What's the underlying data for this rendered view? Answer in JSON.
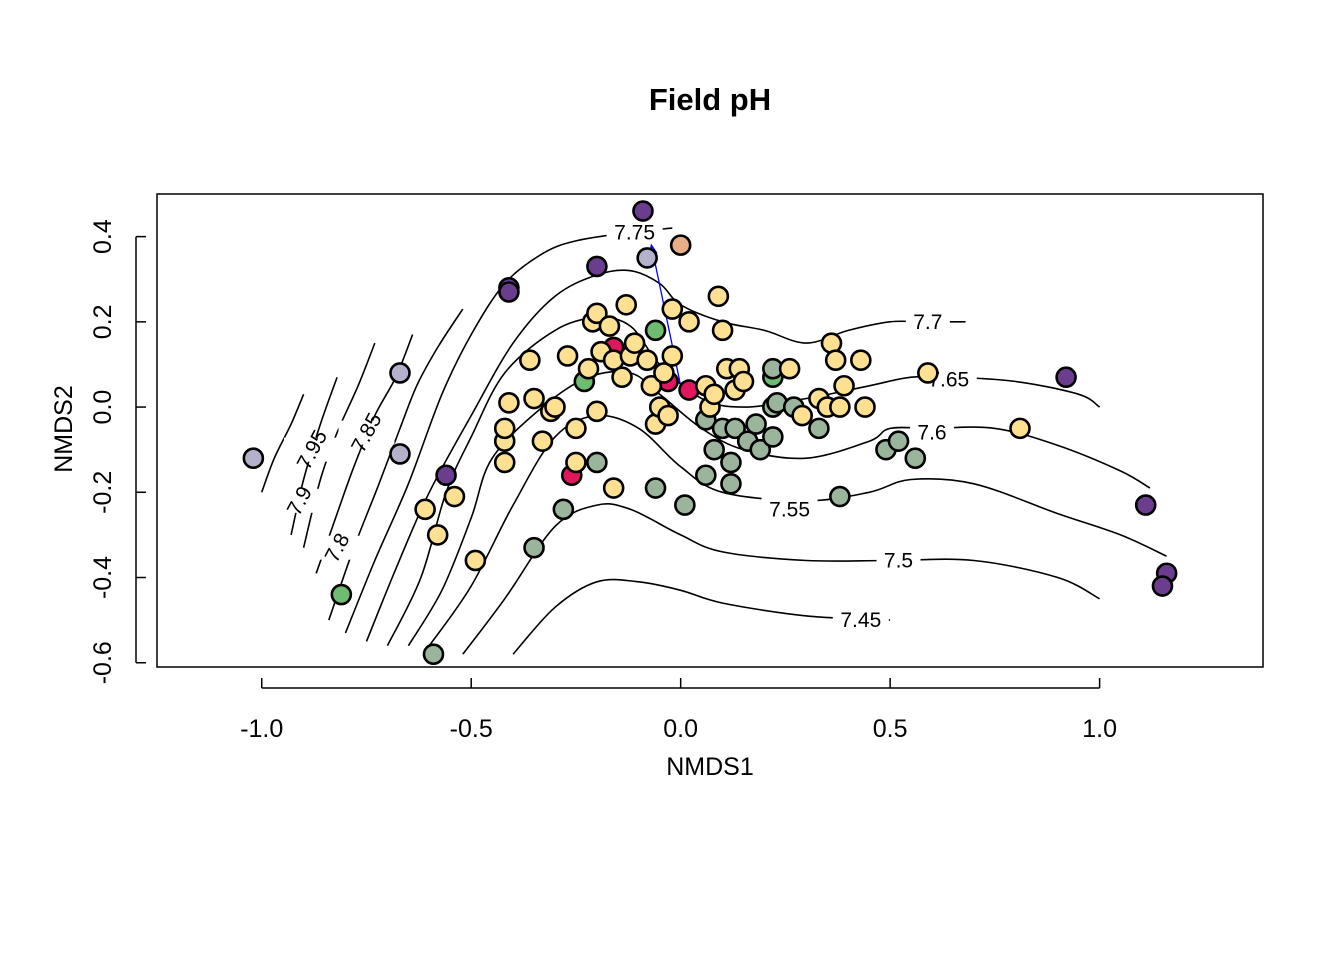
{
  "chart_data": {
    "type": "scatter",
    "title": "Field pH",
    "xlabel": "NMDS1",
    "ylabel": "NMDS2",
    "xlim": [
      -1.25,
      1.39
    ],
    "ylim": [
      -0.61,
      0.5
    ],
    "xticks": [
      -1.0,
      -0.5,
      0.0,
      0.5,
      1.0
    ],
    "xtick_labels": [
      "-1.0",
      "-0.5",
      "0.0",
      "0.5",
      "1.0"
    ],
    "yticks": [
      -0.6,
      -0.4,
      -0.2,
      0.0,
      0.2,
      0.4
    ],
    "ytick_labels": [
      "-0.6",
      "-0.4",
      "-0.2",
      "0.0",
      "0.2",
      "0.4"
    ],
    "grid": false,
    "legend": "none",
    "colors": {
      "yellow": "#fde092",
      "sage": "#9bb49c",
      "purple": "#6a3d8f",
      "lavender": "#b3b1cc",
      "green": "#6dbc6f",
      "magenta": "#e0165f",
      "peach": "#e8ae88",
      "contour": "#000000",
      "arrow": "#0000ff",
      "marker_edge": "#000000"
    },
    "vector": {
      "from": [
        0.0,
        0.05
      ],
      "to": [
        -0.07,
        0.38
      ]
    },
    "contours": [
      {
        "level": "7.45",
        "label_at": [
          0.43,
          -0.5
        ],
        "pts": [
          [
            -0.4,
            -0.58
          ],
          [
            -0.3,
            -0.47
          ],
          [
            -0.2,
            -0.41
          ],
          [
            -0.1,
            -0.41
          ],
          [
            0.0,
            -0.43
          ],
          [
            0.1,
            -0.46
          ],
          [
            0.3,
            -0.49
          ],
          [
            0.5,
            -0.5
          ]
        ]
      },
      {
        "level": "7.5",
        "label_at": [
          0.52,
          -0.36
        ],
        "pts": [
          [
            -0.52,
            -0.58
          ],
          [
            -0.42,
            -0.45
          ],
          [
            -0.3,
            -0.28
          ],
          [
            -0.2,
            -0.23
          ],
          [
            -0.12,
            -0.24
          ],
          [
            0.0,
            -0.3
          ],
          [
            0.1,
            -0.34
          ],
          [
            0.3,
            -0.36
          ],
          [
            0.5,
            -0.36
          ],
          [
            0.7,
            -0.36
          ],
          [
            0.9,
            -0.4
          ],
          [
            1.0,
            -0.45
          ]
        ]
      },
      {
        "level": "7.55",
        "label_at": [
          0.26,
          -0.24
        ],
        "pts": [
          [
            -0.6,
            -0.56
          ],
          [
            -0.5,
            -0.42
          ],
          [
            -0.4,
            -0.23
          ],
          [
            -0.3,
            -0.07
          ],
          [
            -0.2,
            -0.02
          ],
          [
            -0.1,
            -0.05
          ],
          [
            0.0,
            -0.14
          ],
          [
            0.1,
            -0.2
          ],
          [
            0.3,
            -0.22
          ],
          [
            0.45,
            -0.2
          ],
          [
            0.55,
            -0.17
          ],
          [
            0.7,
            -0.18
          ],
          [
            0.9,
            -0.25
          ],
          [
            1.05,
            -0.3
          ],
          [
            1.16,
            -0.35
          ]
        ]
      },
      {
        "level": "7.6",
        "label_at": [
          0.6,
          -0.06
        ],
        "pts": [
          [
            -0.65,
            -0.56
          ],
          [
            -0.57,
            -0.43
          ],
          [
            -0.5,
            -0.26
          ],
          [
            -0.45,
            -0.12
          ],
          [
            -0.33,
            0.0
          ],
          [
            -0.22,
            0.07
          ],
          [
            -0.12,
            0.08
          ],
          [
            -0.05,
            0.03
          ],
          [
            0.05,
            -0.05
          ],
          [
            0.15,
            -0.1
          ],
          [
            0.3,
            -0.12
          ],
          [
            0.45,
            -0.08
          ],
          [
            0.5,
            -0.05
          ],
          [
            0.6,
            -0.05
          ],
          [
            0.75,
            -0.05
          ],
          [
            0.9,
            -0.09
          ],
          [
            1.05,
            -0.15
          ],
          [
            1.12,
            -0.19
          ]
        ]
      },
      {
        "level": "7.65",
        "label_at": [
          0.64,
          0.065
        ],
        "pts": [
          [
            -0.7,
            -0.56
          ],
          [
            -0.62,
            -0.4
          ],
          [
            -0.56,
            -0.2
          ],
          [
            -0.5,
            -0.07
          ],
          [
            -0.42,
            0.08
          ],
          [
            -0.3,
            0.18
          ],
          [
            -0.2,
            0.21
          ],
          [
            -0.12,
            0.19
          ],
          [
            -0.05,
            0.1
          ],
          [
            0.05,
            0.02
          ],
          [
            0.15,
            0.0
          ],
          [
            0.3,
            0.02
          ],
          [
            0.45,
            0.05
          ],
          [
            0.55,
            0.07
          ],
          [
            0.65,
            0.07
          ],
          [
            0.8,
            0.06
          ],
          [
            0.95,
            0.03
          ],
          [
            1.0,
            0.0
          ]
        ]
      },
      {
        "level": "7.7",
        "label_at": [
          0.59,
          0.2
        ],
        "pts": [
          [
            -0.75,
            -0.55
          ],
          [
            -0.68,
            -0.38
          ],
          [
            -0.6,
            -0.2
          ],
          [
            -0.5,
            -0.02
          ],
          [
            -0.4,
            0.15
          ],
          [
            -0.3,
            0.26
          ],
          [
            -0.2,
            0.31
          ],
          [
            -0.12,
            0.32
          ],
          [
            -0.05,
            0.29
          ],
          [
            0.0,
            0.24
          ],
          [
            0.1,
            0.2
          ],
          [
            0.2,
            0.18
          ],
          [
            0.3,
            0.15
          ],
          [
            0.4,
            0.18
          ],
          [
            0.5,
            0.2
          ],
          [
            0.58,
            0.2
          ],
          [
            0.68,
            0.2
          ]
        ]
      },
      {
        "level": "7.75",
        "label_at": [
          -0.11,
          0.41
        ],
        "pts": [
          [
            -0.8,
            -0.53
          ],
          [
            -0.73,
            -0.36
          ],
          [
            -0.65,
            -0.18
          ],
          [
            -0.57,
            0.03
          ],
          [
            -0.5,
            0.17
          ],
          [
            -0.42,
            0.29
          ],
          [
            -0.33,
            0.36
          ],
          [
            -0.25,
            0.39
          ],
          [
            -0.12,
            0.41
          ],
          [
            -0.02,
            0.42
          ]
        ]
      },
      {
        "level": "7.8",
        "label_at": [
          -0.82,
          -0.33
        ],
        "pts": [
          [
            -0.84,
            -0.5
          ],
          [
            -0.78,
            -0.33
          ],
          [
            -0.72,
            -0.18
          ],
          [
            -0.67,
            -0.05
          ],
          [
            -0.63,
            0.05
          ],
          [
            -0.58,
            0.14
          ],
          [
            -0.52,
            0.23
          ]
        ]
      },
      {
        "level": "7.85",
        "label_at": [
          -0.75,
          -0.06
        ],
        "pts": [
          [
            -0.87,
            -0.39
          ],
          [
            -0.82,
            -0.25
          ],
          [
            -0.78,
            -0.14
          ],
          [
            -0.73,
            -0.02
          ],
          [
            -0.68,
            0.07
          ],
          [
            -0.64,
            0.17
          ]
        ]
      },
      {
        "level": "7.9",
        "label_at": [
          -0.91,
          -0.22
        ],
        "pts": [
          [
            -0.9,
            -0.33
          ],
          [
            -0.86,
            -0.17
          ],
          [
            -0.82,
            -0.06
          ],
          [
            -0.77,
            0.05
          ],
          [
            -0.73,
            0.15
          ]
        ]
      },
      {
        "level": "7.95",
        "label_at": [
          -0.88,
          -0.1
        ],
        "pts": [
          [
            -0.93,
            -0.3
          ],
          [
            -0.9,
            -0.17
          ],
          [
            -0.86,
            -0.04
          ],
          [
            -0.82,
            0.07
          ]
        ]
      },
      {
        "level": "",
        "label_at": null,
        "pts": [
          [
            -1.0,
            -0.2
          ],
          [
            -0.97,
            -0.12
          ],
          [
            -0.93,
            -0.04
          ],
          [
            -0.9,
            0.03
          ]
        ]
      }
    ],
    "points": [
      {
        "x": -1.02,
        "y": -0.12,
        "c": "lavender"
      },
      {
        "x": -0.67,
        "y": 0.08,
        "c": "lavender"
      },
      {
        "x": -0.67,
        "y": -0.11,
        "c": "lavender"
      },
      {
        "x": -0.08,
        "y": 0.35,
        "c": "lavender"
      },
      {
        "x": -0.09,
        "y": 0.46,
        "c": "purple"
      },
      {
        "x": -0.41,
        "y": 0.28,
        "c": "purple"
      },
      {
        "x": -0.41,
        "y": 0.27,
        "c": "purple"
      },
      {
        "x": -0.2,
        "y": 0.33,
        "c": "purple"
      },
      {
        "x": -0.56,
        "y": -0.16,
        "c": "purple"
      },
      {
        "x": 0.92,
        "y": 0.07,
        "c": "purple"
      },
      {
        "x": 1.11,
        "y": -0.23,
        "c": "purple"
      },
      {
        "x": 1.16,
        "y": -0.39,
        "c": "purple"
      },
      {
        "x": 1.15,
        "y": -0.42,
        "c": "purple"
      },
      {
        "x": -0.81,
        "y": -0.44,
        "c": "green"
      },
      {
        "x": -0.06,
        "y": 0.18,
        "c": "green"
      },
      {
        "x": -0.23,
        "y": 0.06,
        "c": "green"
      },
      {
        "x": 0.22,
        "y": 0.07,
        "c": "green"
      },
      {
        "x": 0.0,
        "y": 0.38,
        "c": "peach"
      },
      {
        "x": -0.16,
        "y": 0.14,
        "c": "magenta"
      },
      {
        "x": -0.03,
        "y": 0.06,
        "c": "magenta"
      },
      {
        "x": 0.02,
        "y": 0.04,
        "c": "magenta"
      },
      {
        "x": -0.26,
        "y": -0.16,
        "c": "magenta"
      },
      {
        "x": -0.59,
        "y": -0.58,
        "c": "sage"
      },
      {
        "x": -0.35,
        "y": -0.33,
        "c": "sage"
      },
      {
        "x": -0.28,
        "y": -0.24,
        "c": "sage"
      },
      {
        "x": -0.2,
        "y": -0.13,
        "c": "sage"
      },
      {
        "x": -0.06,
        "y": -0.19,
        "c": "sage"
      },
      {
        "x": 0.01,
        "y": -0.23,
        "c": "sage"
      },
      {
        "x": 0.06,
        "y": -0.16,
        "c": "sage"
      },
      {
        "x": 0.06,
        "y": -0.03,
        "c": "sage"
      },
      {
        "x": 0.08,
        "y": -0.1,
        "c": "sage"
      },
      {
        "x": 0.1,
        "y": -0.05,
        "c": "sage"
      },
      {
        "x": 0.12,
        "y": -0.18,
        "c": "sage"
      },
      {
        "x": 0.12,
        "y": -0.13,
        "c": "sage"
      },
      {
        "x": 0.13,
        "y": -0.05,
        "c": "sage"
      },
      {
        "x": 0.16,
        "y": -0.08,
        "c": "sage"
      },
      {
        "x": 0.18,
        "y": -0.04,
        "c": "sage"
      },
      {
        "x": 0.19,
        "y": -0.1,
        "c": "sage"
      },
      {
        "x": 0.22,
        "y": -0.07,
        "c": "sage"
      },
      {
        "x": 0.22,
        "y": 0.09,
        "c": "sage"
      },
      {
        "x": 0.22,
        "y": 0.0,
        "c": "sage"
      },
      {
        "x": 0.23,
        "y": 0.01,
        "c": "sage"
      },
      {
        "x": 0.27,
        "y": 0.0,
        "c": "sage"
      },
      {
        "x": 0.33,
        "y": -0.05,
        "c": "sage"
      },
      {
        "x": 0.38,
        "y": -0.21,
        "c": "sage"
      },
      {
        "x": 0.49,
        "y": -0.1,
        "c": "sage"
      },
      {
        "x": 0.52,
        "y": -0.08,
        "c": "sage"
      },
      {
        "x": 0.56,
        "y": -0.12,
        "c": "sage"
      },
      {
        "x": -0.61,
        "y": -0.24,
        "c": "yellow"
      },
      {
        "x": -0.58,
        "y": -0.3,
        "c": "yellow"
      },
      {
        "x": -0.54,
        "y": -0.21,
        "c": "yellow"
      },
      {
        "x": -0.49,
        "y": -0.36,
        "c": "yellow"
      },
      {
        "x": -0.42,
        "y": -0.13,
        "c": "yellow"
      },
      {
        "x": -0.42,
        "y": -0.08,
        "c": "yellow"
      },
      {
        "x": -0.42,
        "y": -0.05,
        "c": "yellow"
      },
      {
        "x": -0.41,
        "y": 0.01,
        "c": "yellow"
      },
      {
        "x": -0.36,
        "y": 0.11,
        "c": "yellow"
      },
      {
        "x": -0.35,
        "y": 0.02,
        "c": "yellow"
      },
      {
        "x": -0.33,
        "y": -0.08,
        "c": "yellow"
      },
      {
        "x": -0.31,
        "y": -0.01,
        "c": "yellow"
      },
      {
        "x": -0.3,
        "y": 0.0,
        "c": "yellow"
      },
      {
        "x": -0.27,
        "y": 0.12,
        "c": "yellow"
      },
      {
        "x": -0.25,
        "y": -0.13,
        "c": "yellow"
      },
      {
        "x": -0.25,
        "y": -0.05,
        "c": "yellow"
      },
      {
        "x": -0.22,
        "y": 0.09,
        "c": "yellow"
      },
      {
        "x": -0.21,
        "y": 0.2,
        "c": "yellow"
      },
      {
        "x": -0.2,
        "y": 0.22,
        "c": "yellow"
      },
      {
        "x": -0.2,
        "y": -0.01,
        "c": "yellow"
      },
      {
        "x": -0.19,
        "y": 0.13,
        "c": "yellow"
      },
      {
        "x": -0.17,
        "y": 0.19,
        "c": "yellow"
      },
      {
        "x": -0.16,
        "y": 0.11,
        "c": "yellow"
      },
      {
        "x": -0.16,
        "y": -0.19,
        "c": "yellow"
      },
      {
        "x": -0.14,
        "y": 0.07,
        "c": "yellow"
      },
      {
        "x": -0.13,
        "y": 0.24,
        "c": "yellow"
      },
      {
        "x": -0.12,
        "y": 0.12,
        "c": "yellow"
      },
      {
        "x": -0.11,
        "y": 0.15,
        "c": "yellow"
      },
      {
        "x": -0.08,
        "y": 0.11,
        "c": "yellow"
      },
      {
        "x": -0.07,
        "y": 0.05,
        "c": "yellow"
      },
      {
        "x": -0.06,
        "y": -0.04,
        "c": "yellow"
      },
      {
        "x": -0.05,
        "y": 0.0,
        "c": "yellow"
      },
      {
        "x": -0.04,
        "y": 0.08,
        "c": "yellow"
      },
      {
        "x": -0.03,
        "y": -0.02,
        "c": "yellow"
      },
      {
        "x": -0.02,
        "y": 0.12,
        "c": "yellow"
      },
      {
        "x": -0.02,
        "y": 0.23,
        "c": "yellow"
      },
      {
        "x": 0.02,
        "y": 0.2,
        "c": "yellow"
      },
      {
        "x": 0.06,
        "y": 0.05,
        "c": "yellow"
      },
      {
        "x": 0.07,
        "y": 0.0,
        "c": "yellow"
      },
      {
        "x": 0.08,
        "y": 0.03,
        "c": "yellow"
      },
      {
        "x": 0.09,
        "y": 0.26,
        "c": "yellow"
      },
      {
        "x": 0.1,
        "y": 0.18,
        "c": "yellow"
      },
      {
        "x": 0.11,
        "y": 0.09,
        "c": "yellow"
      },
      {
        "x": 0.13,
        "y": 0.04,
        "c": "yellow"
      },
      {
        "x": 0.14,
        "y": 0.09,
        "c": "yellow"
      },
      {
        "x": 0.15,
        "y": 0.06,
        "c": "yellow"
      },
      {
        "x": 0.26,
        "y": 0.09,
        "c": "yellow"
      },
      {
        "x": 0.29,
        "y": -0.02,
        "c": "yellow"
      },
      {
        "x": 0.33,
        "y": 0.02,
        "c": "yellow"
      },
      {
        "x": 0.35,
        "y": 0.0,
        "c": "yellow"
      },
      {
        "x": 0.36,
        "y": 0.15,
        "c": "yellow"
      },
      {
        "x": 0.37,
        "y": 0.11,
        "c": "yellow"
      },
      {
        "x": 0.38,
        "y": 0.0,
        "c": "yellow"
      },
      {
        "x": 0.39,
        "y": 0.05,
        "c": "yellow"
      },
      {
        "x": 0.43,
        "y": 0.11,
        "c": "yellow"
      },
      {
        "x": 0.44,
        "y": 0.0,
        "c": "yellow"
      },
      {
        "x": 0.59,
        "y": 0.08,
        "c": "yellow"
      },
      {
        "x": 0.81,
        "y": -0.05,
        "c": "yellow"
      }
    ]
  }
}
